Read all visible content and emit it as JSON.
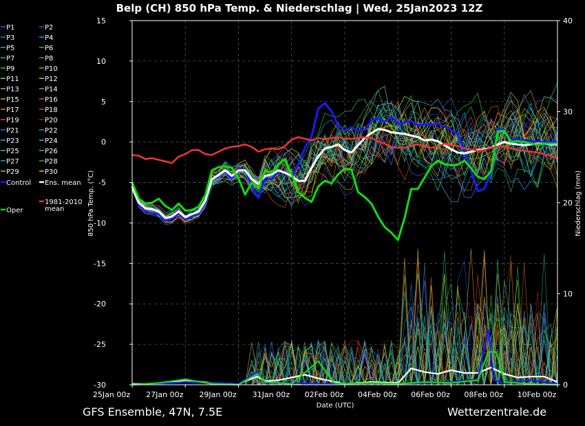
{
  "title": "Belp  (CH)  850 hPa Temp. & Niederschlag | Wed, 25Jan2023 12Z",
  "footer_left": "GFS Ensemble, 47N, 7.5E",
  "footer_right": "Wetterzentrale.de",
  "colors": {
    "background": "#000000",
    "grid": "#555555",
    "control": "#1a1aff",
    "ens_mean": "#ffffff",
    "oper": "#11dd11",
    "climate_mean": "#ee3333"
  },
  "chart_data": {
    "type": "line",
    "xlabel": "Date (UTC)",
    "ylabel": "850 hPa Temp. (°C)",
    "y2label": "Niederschlag (mm)",
    "ylim": [
      -30,
      15
    ],
    "y2lim": [
      0,
      40
    ],
    "yticks": [
      15,
      10,
      5,
      0,
      -5,
      -10,
      -15,
      -20,
      -25,
      -30
    ],
    "y2ticks": [
      40,
      30,
      20,
      10,
      0
    ],
    "xlim": [
      0,
      16
    ],
    "xticks": [
      "25Jan 00z",
      "27Jan 00z",
      "29Jan 00z",
      "31Jan 00z",
      "02Feb 00z",
      "04Feb 00z",
      "06Feb 00z",
      "08Feb 00z",
      "10Feb 00z"
    ],
    "grid": true,
    "legend_position": "left, outside plot",
    "legend": [
      {
        "name": "P1",
        "color": "#3355ff"
      },
      {
        "name": "P2",
        "color": "#2255ee"
      },
      {
        "name": "P3",
        "color": "#4477ff"
      },
      {
        "name": "P4",
        "color": "#3399ff"
      },
      {
        "name": "P5",
        "color": "#33aacc"
      },
      {
        "name": "P6",
        "color": "#22bb77"
      },
      {
        "name": "P7",
        "color": "#22bbaa"
      },
      {
        "name": "P8",
        "color": "#33aa55"
      },
      {
        "name": "P9",
        "color": "#33cc33"
      },
      {
        "name": "P10",
        "color": "#66cc22"
      },
      {
        "name": "P11",
        "color": "#aacc22"
      },
      {
        "name": "P12",
        "color": "#cccc33"
      },
      {
        "name": "P13",
        "color": "#ddaa22"
      },
      {
        "name": "P14",
        "color": "#cc8822"
      },
      {
        "name": "P15",
        "color": "#dd9944"
      },
      {
        "name": "P16",
        "color": "#bb6622"
      },
      {
        "name": "P17",
        "color": "#ee7733"
      },
      {
        "name": "P18",
        "color": "#cc5522"
      },
      {
        "name": "P19",
        "color": "#dd4433"
      },
      {
        "name": "P20",
        "color": "#aa2222"
      },
      {
        "name": "P21",
        "color": "#4466dd"
      },
      {
        "name": "P22",
        "color": "#3388dd"
      },
      {
        "name": "P23",
        "color": "#44aaee"
      },
      {
        "name": "P24",
        "color": "#33bbcc"
      },
      {
        "name": "P25",
        "color": "#33cc99"
      },
      {
        "name": "P26",
        "color": "#22cc88"
      },
      {
        "name": "P27",
        "color": "#22aa99"
      },
      {
        "name": "P28",
        "color": "#33aa66"
      },
      {
        "name": "P29",
        "color": "#88cc22"
      },
      {
        "name": "P30",
        "color": "#cccc11"
      },
      {
        "name": "Control",
        "color": "#1a1aff"
      },
      {
        "name": "Ens. mean",
        "color": "#ffffff"
      },
      {
        "name": "Oper",
        "color": "#11dd11"
      },
      {
        "name": "1981-2010 mean",
        "color": "#ee3333"
      }
    ],
    "series": [
      {
        "name": "Control",
        "x": [
          0,
          0.25,
          0.5,
          0.75,
          1,
          1.25,
          1.5,
          1.75,
          2,
          2.25,
          2.5,
          2.75,
          3,
          3.25,
          3.5,
          3.75,
          4,
          4.25,
          4.5,
          4.75,
          5,
          5.25,
          5.5,
          5.75,
          6,
          6.25,
          6.5,
          6.75,
          7,
          7.25,
          7.5,
          7.75,
          8,
          8.25,
          8.5,
          8.75,
          9,
          9.25,
          9.5,
          9.75,
          10,
          10.25,
          10.5,
          10.75,
          11,
          11.25,
          11.5,
          11.75,
          12,
          12.25,
          12.5,
          12.75,
          13,
          13.25,
          13.5,
          13.75,
          14,
          14.25,
          14.5,
          14.75,
          15,
          15.25,
          15.5,
          15.75,
          16
        ],
        "values": [
          -5.2,
          -7.8,
          -8.6,
          -8.8,
          -8.9,
          -9.7,
          -9.5,
          -8.8,
          -9.6,
          -9.2,
          -8.9,
          -7.5,
          -4.6,
          -4.3,
          -3.6,
          -4.5,
          -3.2,
          -3.5,
          -5.5,
          -6.9,
          -4.5,
          -4.6,
          -3.6,
          -3.9,
          -4.2,
          -2.9,
          -0.7,
          0.7,
          4.1,
          4.8,
          3.8,
          2.1,
          1.4,
          1.8,
          1.4,
          1.5,
          2.6,
          2.9,
          2.5,
          3.1,
          2.3,
          2.4,
          2.6,
          2.1,
          2.2,
          2.1,
          2.3,
          1.9,
          1.5,
          0.9,
          -1.2,
          -3.5,
          -6.1,
          -5.8,
          -3.8,
          1.6,
          1.5,
          0.3,
          0.3,
          0.2,
          0.1,
          0.0,
          0.0,
          0.0,
          0.0
        ]
      },
      {
        "name": "Ens. mean",
        "x": [
          0,
          0.25,
          0.5,
          0.75,
          1,
          1.25,
          1.5,
          1.75,
          2,
          2.25,
          2.5,
          2.75,
          3,
          3.25,
          3.5,
          3.75,
          4,
          4.25,
          4.5,
          4.75,
          5,
          5.25,
          5.5,
          5.75,
          6,
          6.25,
          6.5,
          6.75,
          7,
          7.25,
          7.5,
          7.75,
          8,
          8.25,
          8.5,
          8.75,
          9,
          9.25,
          9.5,
          9.75,
          10,
          10.25,
          10.5,
          10.75,
          11,
          11.25,
          11.5,
          11.75,
          12,
          12.25,
          12.5,
          12.75,
          13,
          13.25,
          13.5,
          13.75,
          14,
          14.25,
          14.5,
          14.75,
          15,
          15.25,
          15.5,
          15.75,
          16
        ],
        "values": [
          -5.5,
          -7.5,
          -8.2,
          -8.3,
          -8.6,
          -9.4,
          -9.2,
          -8.6,
          -9.3,
          -8.9,
          -8.6,
          -7.3,
          -4.6,
          -4.1,
          -3.5,
          -4.2,
          -3.5,
          -3.5,
          -4.6,
          -5.2,
          -4.2,
          -4.0,
          -3.5,
          -3.8,
          -4.2,
          -4.8,
          -4.8,
          -3.2,
          -1.8,
          -0.8,
          -0.6,
          -0.3,
          -1.0,
          -1.3,
          -0.4,
          0.5,
          1.1,
          1.6,
          1.5,
          1.2,
          1.1,
          1.0,
          0.8,
          0.6,
          0.2,
          0.3,
          0.1,
          -0.4,
          -0.9,
          -1.3,
          -1.4,
          -1.2,
          -1.0,
          -0.9,
          -0.7,
          -0.3,
          0.0,
          -0.2,
          -0.3,
          -0.4,
          -0.3,
          -0.2,
          -0.2,
          -0.3,
          -0.3
        ]
      },
      {
        "name": "Oper",
        "x": [
          0,
          0.25,
          0.5,
          0.75,
          1,
          1.25,
          1.5,
          1.75,
          2,
          2.25,
          2.5,
          2.75,
          3,
          3.25,
          3.5,
          3.75,
          4,
          4.25,
          4.5,
          4.75,
          5,
          5.25,
          5.5,
          5.75,
          6,
          6.25,
          6.5,
          6.75,
          7,
          7.25,
          7.5,
          7.75,
          8,
          8.25,
          8.5,
          8.75,
          9,
          9.25,
          9.5,
          9.75,
          10,
          10.25,
          10.5,
          10.75,
          11,
          11.25,
          11.5,
          11.75,
          12,
          12.25,
          12.5,
          12.75,
          13,
          13.25,
          13.5,
          13.75,
          14,
          14.25,
          14.5,
          14.75,
          15,
          15.25,
          15.5,
          15.75,
          16
        ],
        "values": [
          -5.0,
          -7.0,
          -7.6,
          -7.5,
          -7.0,
          -7.9,
          -8.4,
          -7.6,
          -8.5,
          -8.4,
          -8.0,
          -6.6,
          -3.5,
          -3.1,
          -3.0,
          -3.2,
          -4.5,
          -6.5,
          -5.0,
          -5.8,
          -3.5,
          -3.8,
          -2.8,
          -2.1,
          -4.0,
          -6.2,
          -6.9,
          -7.4,
          -5.5,
          -4.8,
          -5.1,
          -4.0,
          -3.3,
          -3.4,
          -6.2,
          -6.8,
          -7.6,
          -9.2,
          -10.5,
          -11.2,
          -12.1,
          -9.4,
          -5.8,
          -5.8,
          -4.4,
          -3.0,
          -2.3,
          -2.7,
          -2.9,
          -2.8,
          -2.3,
          -3.2,
          -4.3,
          -4.6,
          -3.6,
          1.3,
          1.4,
          0.0,
          0.1,
          0.0,
          -0.2,
          -0.3,
          -0.2,
          -0.2,
          -0.2
        ]
      },
      {
        "name": "1981-2010 mean",
        "x": [
          0,
          0.25,
          0.5,
          0.75,
          1,
          1.25,
          1.5,
          1.75,
          2,
          2.25,
          2.5,
          2.75,
          3,
          3.25,
          3.5,
          3.75,
          4,
          4.25,
          4.5,
          4.75,
          5,
          5.25,
          5.5,
          5.75,
          6,
          6.25,
          6.5,
          6.75,
          7,
          7.25,
          7.5,
          7.75,
          8,
          8.25,
          8.5,
          8.75,
          9,
          9.25,
          9.5,
          9.75,
          10,
          10.25,
          10.5,
          10.75,
          11,
          11.25,
          11.5,
          11.75,
          12,
          12.25,
          12.5,
          12.75,
          13,
          13.25,
          13.5,
          13.75,
          14,
          14.25,
          14.5,
          14.75,
          15,
          15.25,
          15.5,
          15.75,
          16
        ],
        "values": [
          -1.6,
          -1.7,
          -2.1,
          -2.0,
          -2.2,
          -2.4,
          -2.6,
          -1.8,
          -1.5,
          -1.0,
          -1.0,
          -1.5,
          -1.6,
          -1.2,
          -0.8,
          -0.6,
          -0.5,
          -0.3,
          -0.6,
          -1.2,
          -0.9,
          -0.8,
          -0.9,
          -0.5,
          0.3,
          0.6,
          0.4,
          0.2,
          0.5,
          0.3,
          0.5,
          0.6,
          0.4,
          0.4,
          0.5,
          0.6,
          0.5,
          0.1,
          -0.2,
          -0.6,
          -0.7,
          -0.7,
          -0.5,
          -0.3,
          -0.5,
          -0.7,
          -0.6,
          -0.2,
          -0.4,
          -0.5,
          -0.8,
          -0.9,
          -1.1,
          -1.0,
          -0.7,
          -0.6,
          -0.5,
          -0.8,
          -1.0,
          -1.1,
          -1.2,
          -1.3,
          -1.5,
          -1.7,
          -2.0
        ]
      }
    ],
    "precipitation": {
      "unit": "mm",
      "series": [
        {
          "name": "Ens. mean",
          "x": [
            0,
            1,
            2,
            3,
            4,
            4.7,
            5,
            5.5,
            6,
            6.5,
            7,
            8,
            9,
            10,
            10.5,
            11,
            11.5,
            12,
            12.5,
            13,
            13.5,
            14,
            14.5,
            15,
            15.5,
            16
          ],
          "values": [
            0.1,
            0.1,
            0.5,
            0.2,
            0.1,
            0.9,
            0.4,
            0.5,
            0.8,
            1.1,
            0.7,
            0.1,
            0.3,
            0.2,
            1.8,
            1.4,
            1.2,
            1.6,
            1.3,
            1.3,
            1.9,
            1.2,
            0.8,
            0.9,
            0.9,
            0.3
          ]
        },
        {
          "name": "Control",
          "x": [
            0,
            1,
            2,
            3,
            4,
            4.7,
            5,
            6,
            7,
            8,
            9,
            10,
            11,
            12,
            13,
            13.4,
            13.6,
            14,
            15,
            16
          ],
          "values": [
            0,
            0.1,
            0.3,
            0.2,
            0.1,
            1.4,
            0.2,
            0.2,
            0.1,
            0.1,
            0.2,
            0.1,
            0.2,
            0.3,
            0.6,
            6.1,
            0.5,
            0.2,
            0.5,
            0.1
          ]
        },
        {
          "name": "Oper",
          "x": [
            0,
            1,
            2,
            3,
            4,
            4.7,
            5,
            6,
            7,
            7.6,
            8,
            9,
            10,
            11,
            12,
            13,
            13.4,
            13.7,
            14,
            15,
            16
          ],
          "values": [
            0,
            0.2,
            0.6,
            0.1,
            0,
            1.2,
            0.3,
            0.1,
            2.6,
            0.2,
            0.1,
            0.2,
            0.1,
            0.3,
            0.2,
            0.5,
            3.6,
            3.6,
            0.3,
            0.1,
            0
          ]
        }
      ]
    }
  }
}
